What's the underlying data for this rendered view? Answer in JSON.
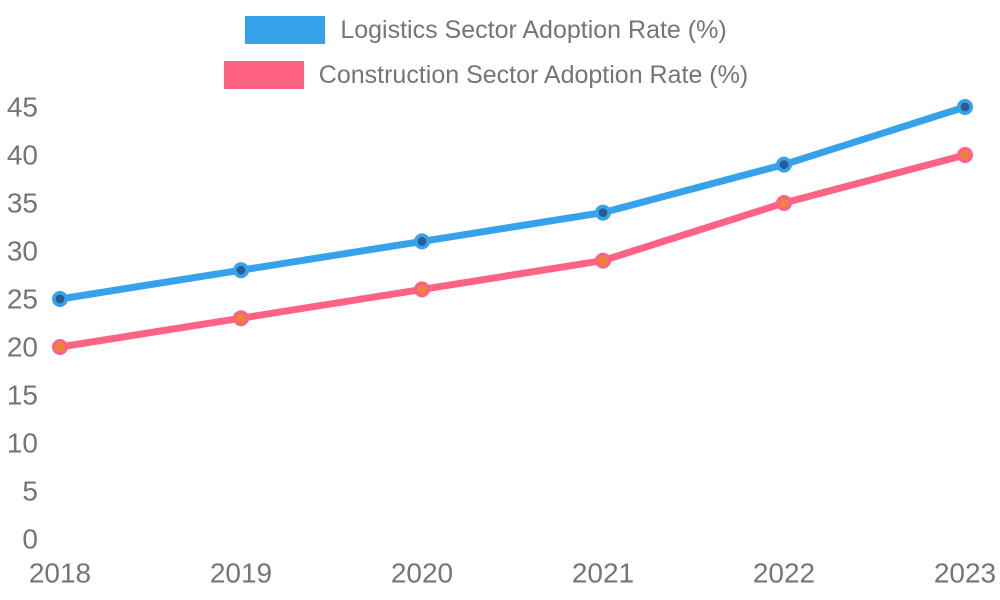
{
  "page": {
    "background_color": "#ffffff",
    "text_color": "#757575"
  },
  "legend": {
    "position": "top",
    "items": [
      {
        "label": "Logistics Sector Adoption Rate (%)",
        "swatch_color": "#36A2EB"
      },
      {
        "label": "Construction Sector Adoption Rate (%)",
        "swatch_color": "#FF6384"
      }
    ]
  },
  "chart_data": {
    "type": "line",
    "title": "",
    "xlabel": "",
    "ylabel": "",
    "x": [
      "2018",
      "2019",
      "2020",
      "2021",
      "2022",
      "2023"
    ],
    "series": [
      {
        "name": "Logistics Sector Adoption Rate (%)",
        "values": [
          25,
          28,
          31,
          34,
          39,
          45
        ],
        "line_color": "#36A2EB",
        "point_fill_color": "#2A5C90",
        "point_border_color": "#36A2EB"
      },
      {
        "name": "Construction Sector Adoption Rate (%)",
        "values": [
          20,
          23,
          26,
          29,
          35,
          40
        ],
        "line_color": "#FF6384",
        "point_fill_color": "#E9862F",
        "point_border_color": "#FF6384"
      }
    ],
    "ylim": [
      0,
      45
    ],
    "ytick_step": 5,
    "yticks": [
      0,
      5,
      10,
      15,
      20,
      25,
      30,
      35,
      40,
      45
    ],
    "grid": false,
    "axis_lines": false,
    "legend_position": "top",
    "tick_color": "#757575"
  }
}
